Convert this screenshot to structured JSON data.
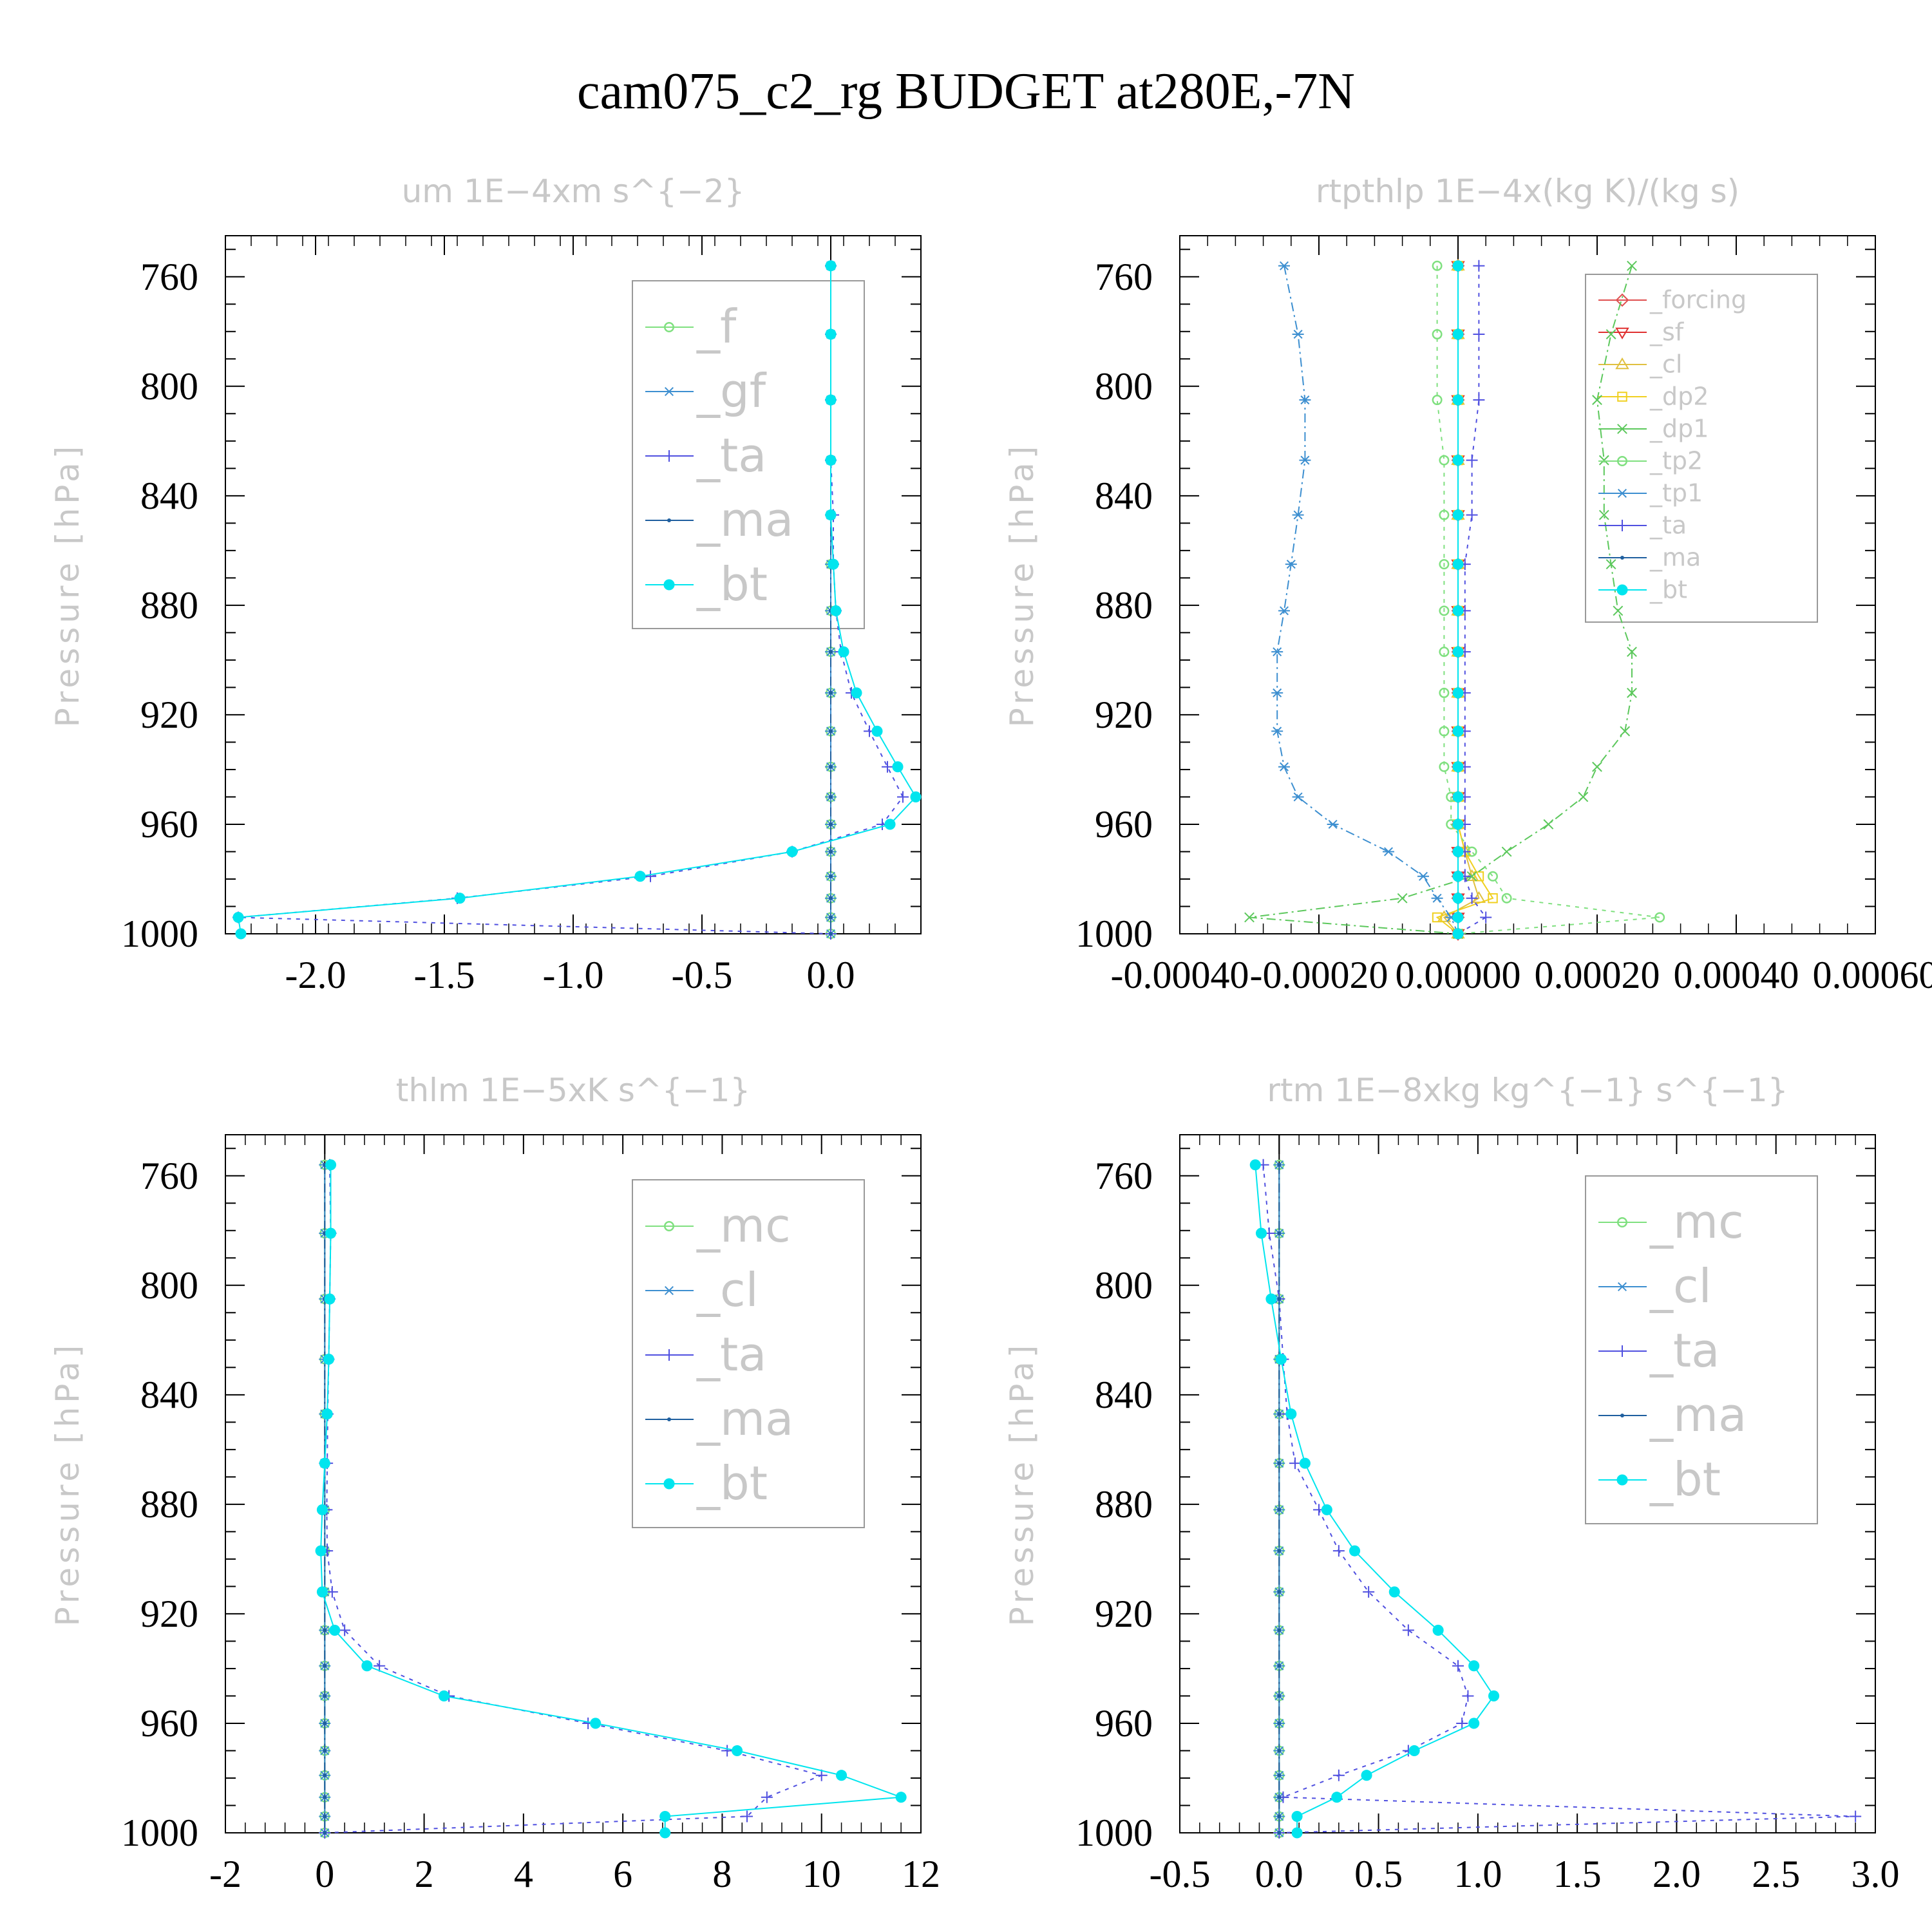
{
  "figure": {
    "title": "cam075_c2_rg  BUDGET at280E,-7N"
  },
  "chart_data": [
    {
      "type": "line",
      "title": "um   1E−4xm s^{−2}",
      "ylabel": "Pressure [hPa]",
      "xlabel": "",
      "xlim": [
        -2.35,
        0.35
      ],
      "ylim": [
        745,
        1000
      ],
      "xticks": [
        -2.0,
        -1.5,
        -1.0,
        -0.5,
        0.0
      ],
      "xticklabels": [
        "-2.0",
        "-1.5",
        "-1.0",
        "-0.5",
        "0.0"
      ],
      "yticks": [
        760,
        800,
        840,
        880,
        920,
        960,
        1000
      ],
      "legend_position": "top-right",
      "legend_fontsize": 72,
      "levels": [
        756,
        781,
        805,
        827,
        847,
        865,
        882,
        897,
        912,
        926,
        939,
        950,
        960,
        970,
        979,
        987,
        994,
        1000
      ],
      "series": [
        {
          "name": "_f",
          "color": "#7fe07f",
          "marker": "circle-open",
          "dash": "",
          "values": [
            0,
            0,
            0,
            0,
            0,
            0,
            0,
            0,
            0,
            0,
            0,
            0,
            0,
            0,
            0,
            0,
            0,
            0
          ]
        },
        {
          "name": "_gf",
          "color": "#3d8fd0",
          "marker": "asterisk",
          "dash": "",
          "values": [
            0,
            0,
            0,
            0,
            0,
            0,
            0,
            0,
            0,
            0,
            0,
            0,
            0,
            0,
            0,
            0,
            0,
            0
          ]
        },
        {
          "name": "_ta",
          "color": "#5050e0",
          "marker": "plus",
          "dash": "6,8",
          "values": [
            0,
            0,
            0,
            0,
            0.01,
            0.01,
            0.02,
            0.04,
            0.08,
            0.15,
            0.22,
            0.28,
            0.2,
            -0.15,
            -0.7,
            -1.45,
            -2.3,
            0
          ]
        },
        {
          "name": "_ma",
          "color": "#1f5f9f",
          "marker": "dot",
          "dash": "14,6,3,6",
          "values": [
            0,
            0,
            0,
            0,
            0,
            0,
            0,
            0,
            0,
            0,
            0,
            0,
            0,
            0,
            0,
            0,
            0,
            0
          ]
        },
        {
          "name": "_bt",
          "color": "#00e5ee",
          "marker": "filled",
          "dash": "",
          "values": [
            0,
            0,
            0,
            0,
            0,
            0.01,
            0.02,
            0.05,
            0.1,
            0.18,
            0.26,
            0.33,
            0.23,
            -0.15,
            -0.74,
            -1.44,
            -2.3,
            -2.29
          ]
        }
      ]
    },
    {
      "type": "line",
      "title": "rtpthlp   1E−4x(kg K)/(kg s)",
      "ylabel": "Pressure [hPa]",
      "xlabel": "",
      "xlim": [
        -0.0004,
        0.0006
      ],
      "ylim": [
        745,
        1000
      ],
      "xticks": [
        -0.0004,
        -0.0002,
        0.0,
        0.0002,
        0.0004,
        0.0006
      ],
      "xticklabels": [
        "-0.00040",
        "-0.00020",
        "0.00000",
        "0.00020",
        "0.00040",
        "0.00060"
      ],
      "yticks": [
        760,
        800,
        840,
        880,
        920,
        960,
        1000
      ],
      "legend_position": "top-right",
      "legend_fontsize": 38,
      "levels": [
        756,
        781,
        805,
        827,
        847,
        865,
        882,
        897,
        912,
        926,
        939,
        950,
        960,
        970,
        979,
        987,
        994,
        1000
      ],
      "series": [
        {
          "name": "_forcing",
          "color": "#e05050",
          "marker": "diamond",
          "dash": "",
          "values": [
            0,
            0,
            0,
            0,
            0,
            0,
            0,
            0,
            0,
            0,
            0,
            0,
            0,
            0,
            0,
            0,
            0,
            0
          ]
        },
        {
          "name": "_sf",
          "color": "#e03030",
          "marker": "triangle-down",
          "dash": "",
          "values": [
            0,
            0,
            0,
            0,
            0,
            0,
            0,
            0,
            0,
            0,
            0,
            0,
            0,
            0,
            0,
            0,
            0,
            0
          ]
        },
        {
          "name": "_cl",
          "color": "#e0c040",
          "marker": "triangle-up",
          "dash": "",
          "values": [
            0,
            0,
            0,
            0,
            0,
            0,
            0,
            0,
            0,
            0,
            0,
            0,
            0,
            1e-05,
            2e-05,
            3e-05,
            -2e-05,
            0
          ]
        },
        {
          "name": "_dp2",
          "color": "#f0d020",
          "marker": "square",
          "dash": "",
          "values": [
            0,
            0,
            0,
            0,
            0,
            0,
            0,
            0,
            0,
            0,
            0,
            0,
            0,
            1e-05,
            3e-05,
            5e-05,
            -3e-05,
            0
          ]
        },
        {
          "name": "_dp1",
          "color": "#5cc85c",
          "marker": "x",
          "dash": "14,6,3,6",
          "values": [
            0.00025,
            0.00022,
            0.0002,
            0.00021,
            0.00021,
            0.00022,
            0.00023,
            0.00025,
            0.00025,
            0.00024,
            0.0002,
            0.00018,
            0.00013,
            7e-05,
            2e-05,
            -8e-05,
            -0.0003,
            0
          ]
        },
        {
          "name": "_tp2",
          "color": "#7fe07f",
          "marker": "circle-open",
          "dash": "6,8",
          "values": [
            -3e-05,
            -3e-05,
            -3e-05,
            -2e-05,
            -2e-05,
            -2e-05,
            -2e-05,
            -2e-05,
            -2e-05,
            -2e-05,
            -2e-05,
            -1e-05,
            -1e-05,
            2e-05,
            5e-05,
            7e-05,
            0.00029,
            0
          ]
        },
        {
          "name": "_tp1",
          "color": "#3d8fd0",
          "marker": "asterisk",
          "dash": "14,6,3,6",
          "values": [
            -0.00025,
            -0.00023,
            -0.00022,
            -0.00022,
            -0.00023,
            -0.00024,
            -0.00025,
            -0.00026,
            -0.00026,
            -0.00026,
            -0.00025,
            -0.00023,
            -0.00018,
            -0.0001,
            -5e-05,
            -3e-05,
            -1e-05,
            0
          ]
        },
        {
          "name": "_ta",
          "color": "#5050e0",
          "marker": "plus",
          "dash": "6,8",
          "values": [
            3e-05,
            3e-05,
            3e-05,
            2e-05,
            2e-05,
            1e-05,
            1e-05,
            1e-05,
            1e-05,
            1e-05,
            1e-05,
            1e-05,
            1e-05,
            1e-05,
            1e-05,
            2e-05,
            4e-05,
            0
          ]
        },
        {
          "name": "_ma",
          "color": "#1f5f9f",
          "marker": "dot",
          "dash": "14,6,3,6",
          "values": [
            0,
            0,
            0,
            0,
            0,
            0,
            0,
            0,
            0,
            0,
            0,
            0,
            0,
            0,
            0,
            0,
            0,
            0
          ]
        },
        {
          "name": "_bt",
          "color": "#00e5ee",
          "marker": "filled",
          "dash": "",
          "values": [
            0,
            0,
            0,
            0,
            0,
            0,
            0,
            0,
            0,
            0,
            0,
            0,
            0,
            0,
            0,
            0,
            0,
            0
          ]
        }
      ]
    },
    {
      "type": "line",
      "title": "thlm   1E−5xK s^{−1}",
      "ylabel": "Pressure [hPa]",
      "xlabel": "",
      "xlim": [
        -2,
        12
      ],
      "ylim": [
        745,
        1000
      ],
      "xticks": [
        -2,
        0,
        2,
        4,
        6,
        8,
        10,
        12
      ],
      "xticklabels": [
        "-2",
        "0",
        "2",
        "4",
        "6",
        "8",
        "10",
        "12"
      ],
      "yticks": [
        760,
        800,
        840,
        880,
        920,
        960,
        1000
      ],
      "legend_position": "top-right",
      "legend_fontsize": 72,
      "levels": [
        756,
        781,
        805,
        827,
        847,
        865,
        882,
        897,
        912,
        926,
        939,
        950,
        960,
        970,
        979,
        987,
        994,
        1000
      ],
      "series": [
        {
          "name": "_mc",
          "color": "#7fe07f",
          "marker": "circle-open",
          "dash": "",
          "values": [
            0,
            0,
            0,
            0,
            0,
            0,
            0,
            0,
            0,
            0,
            0,
            0,
            0,
            0,
            0,
            0,
            0,
            0
          ]
        },
        {
          "name": "_cl",
          "color": "#3d8fd0",
          "marker": "asterisk",
          "dash": "",
          "values": [
            0,
            0,
            0,
            0,
            0,
            0,
            0,
            0,
            0,
            0,
            0,
            0,
            0,
            0,
            0,
            0,
            0,
            0
          ]
        },
        {
          "name": "_ta",
          "color": "#5050e0",
          "marker": "plus",
          "dash": "6,8",
          "values": [
            0.1,
            0.12,
            0.1,
            0.08,
            0.06,
            0.05,
            0.04,
            0.05,
            0.15,
            0.4,
            1.1,
            2.5,
            5.3,
            8.1,
            10.0,
            8.9,
            8.5,
            0
          ]
        },
        {
          "name": "_ma",
          "color": "#1f5f9f",
          "marker": "dot",
          "dash": "14,6,3,6",
          "values": [
            0,
            0,
            0,
            0,
            0,
            0,
            0,
            0,
            0,
            0,
            0,
            0,
            0,
            0,
            0,
            0,
            0,
            0
          ]
        },
        {
          "name": "_bt",
          "color": "#00e5ee",
          "marker": "filled",
          "dash": "",
          "values": [
            0.12,
            0.12,
            0.1,
            0.08,
            0.05,
            0.0,
            -0.05,
            -0.08,
            -0.05,
            0.2,
            0.85,
            2.4,
            5.45,
            8.3,
            10.4,
            11.6,
            6.85,
            6.85
          ]
        }
      ]
    },
    {
      "type": "line",
      "title": "rtm   1E−8xkg kg^{−1} s^{−1}",
      "ylabel": "Pressure [hPa]",
      "xlabel": "",
      "xlim": [
        -0.5,
        3.0
      ],
      "ylim": [
        745,
        1000
      ],
      "xticks": [
        -0.5,
        0.0,
        0.5,
        1.0,
        1.5,
        2.0,
        2.5,
        3.0
      ],
      "xticklabels": [
        "-0.5",
        "0.0",
        "0.5",
        "1.0",
        "1.5",
        "2.0",
        "2.5",
        "3.0"
      ],
      "yticks": [
        760,
        800,
        840,
        880,
        920,
        960,
        1000
      ],
      "legend_position": "top-right",
      "legend_fontsize": 72,
      "levels": [
        756,
        781,
        805,
        827,
        847,
        865,
        882,
        897,
        912,
        926,
        939,
        950,
        960,
        970,
        979,
        987,
        994,
        1000
      ],
      "series": [
        {
          "name": "_mc",
          "color": "#7fe07f",
          "marker": "circle-open",
          "dash": "",
          "values": [
            0,
            0,
            0,
            0,
            0,
            0,
            0,
            0,
            0,
            0,
            0,
            0,
            0,
            0,
            0,
            0,
            0,
            0
          ]
        },
        {
          "name": "_cl",
          "color": "#3d8fd0",
          "marker": "asterisk",
          "dash": "",
          "values": [
            0,
            0,
            0,
            0,
            0,
            0,
            0,
            0,
            0,
            0,
            0,
            0,
            0,
            0,
            0,
            0,
            0,
            0
          ]
        },
        {
          "name": "_ta",
          "color": "#5050e0",
          "marker": "plus",
          "dash": "6,8",
          "values": [
            -0.08,
            -0.05,
            0.0,
            0.02,
            0.04,
            0.08,
            0.2,
            0.3,
            0.45,
            0.65,
            0.9,
            0.95,
            0.92,
            0.65,
            0.3,
            0.02,
            2.9,
            0
          ]
        },
        {
          "name": "_ma",
          "color": "#1f5f9f",
          "marker": "dot",
          "dash": "14,6,3,6",
          "values": [
            0,
            0,
            0,
            0,
            0,
            0,
            0,
            0,
            0,
            0,
            0,
            0,
            0,
            0,
            0,
            0,
            0,
            0
          ]
        },
        {
          "name": "_bt",
          "color": "#00e5ee",
          "marker": "filled",
          "dash": "",
          "values": [
            -0.12,
            -0.09,
            -0.04,
            0.01,
            0.06,
            0.13,
            0.24,
            0.38,
            0.58,
            0.8,
            0.98,
            1.08,
            0.98,
            0.68,
            0.44,
            0.29,
            0.09,
            0.09
          ]
        }
      ]
    }
  ]
}
